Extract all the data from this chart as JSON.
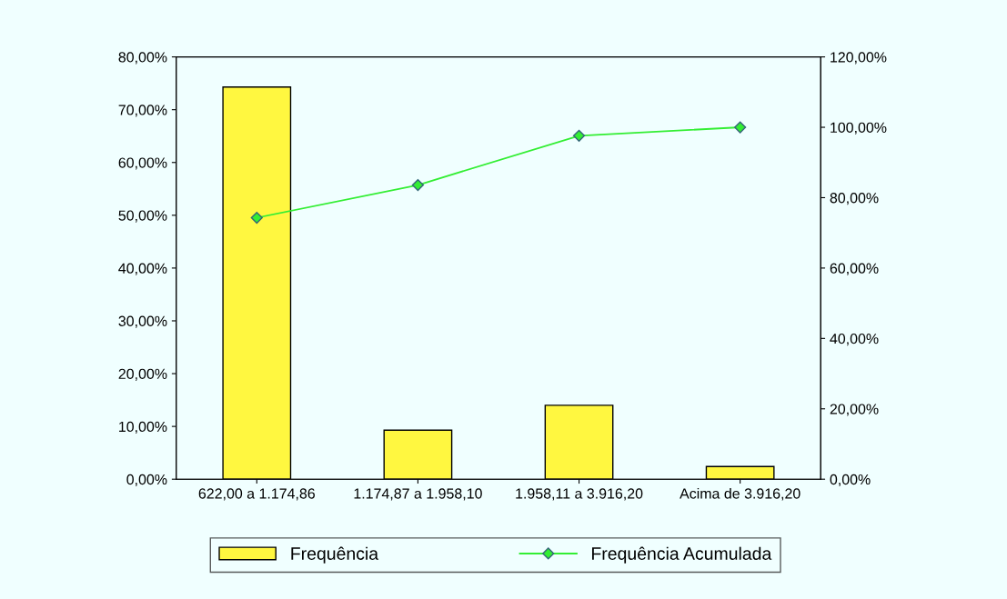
{
  "chart_data": {
    "type": "bar",
    "categories": [
      "622,00 a 1.174,86",
      "1.174,87 a 1.958,10",
      "1.958,11 a 3.916,20",
      "Acima de 3.916,20"
    ],
    "series": [
      {
        "name": "Frequência",
        "color": "#fff740",
        "values": [
          74.3,
          9.3,
          14.0,
          2.4
        ]
      },
      {
        "name": "Frequência Acumulada",
        "type": "line",
        "axis": "y2",
        "color": "#33ee33",
        "marker": "diamond",
        "values": [
          74.3,
          83.6,
          97.6,
          100.0
        ]
      }
    ],
    "ylim": [
      0,
      80
    ],
    "yticks": [
      {
        "value": 0,
        "label": "0,00%"
      },
      {
        "value": 10,
        "label": "10,00%"
      },
      {
        "value": 20,
        "label": "20,00%"
      },
      {
        "value": 30,
        "label": "30,00%"
      },
      {
        "value": 40,
        "label": "40,00%"
      },
      {
        "value": 50,
        "label": "50,00%"
      },
      {
        "value": 60,
        "label": "60,00%"
      },
      {
        "value": 70,
        "label": "70,00%"
      },
      {
        "value": 80,
        "label": "80,00%"
      }
    ],
    "y2lim": [
      0,
      120
    ],
    "y2ticks": [
      {
        "value": 0,
        "label": "0,00%"
      },
      {
        "value": 20,
        "label": "20,00%"
      },
      {
        "value": 40,
        "label": "40,00%"
      },
      {
        "value": 60,
        "label": "60,00%"
      },
      {
        "value": 80,
        "label": "80,00%"
      },
      {
        "value": 100,
        "label": "100,00%"
      },
      {
        "value": 120,
        "label": "120,00%"
      }
    ],
    "grid": false,
    "legend": "bottom"
  }
}
